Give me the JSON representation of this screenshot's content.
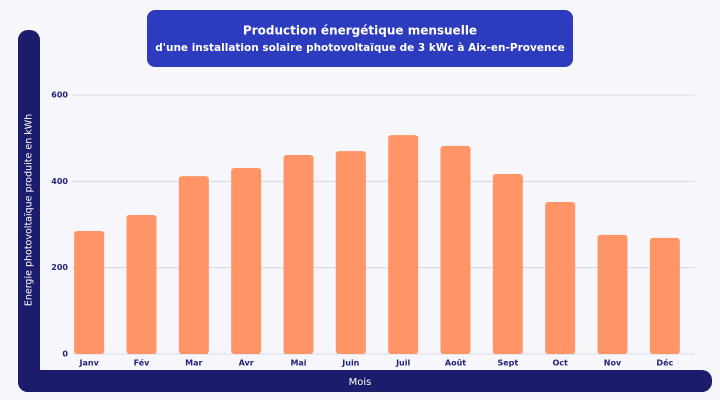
{
  "chart_data": {
    "type": "bar",
    "title": "Production énergétique mensuelle",
    "subtitle": "d'une installation solaire photovoltaïque de 3 kWc à Aix-en-Provence",
    "x_label": "Mois",
    "y_label": "Energie photovoltaïque produite en kWh",
    "categories": [
      "Janv",
      "Fév",
      "Mar",
      "Avr",
      "Mai",
      "Juin",
      "Juil",
      "Août",
      "Sept",
      "Oct",
      "Nov",
      "Déc"
    ],
    "values": [
      285,
      322,
      412,
      431,
      461,
      470,
      507,
      482,
      417,
      352,
      276,
      269
    ],
    "color": "#ff9466",
    "ylim": [
      0,
      600
    ],
    "yticks": [
      0,
      200,
      400,
      600
    ],
    "grid": true
  }
}
